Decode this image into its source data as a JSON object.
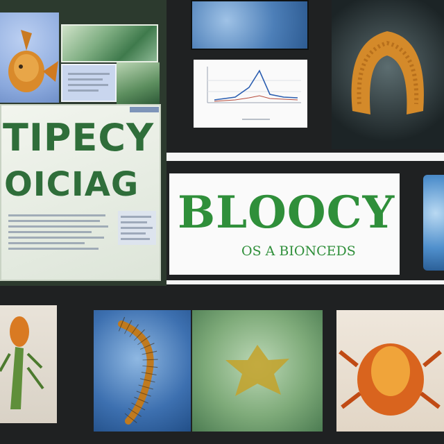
{
  "poster": {
    "line1": "TIPECY",
    "line2": "OICIAG"
  },
  "title_panel": {
    "title": "BLOOCY",
    "subtitle": "OS A BIONCEDS"
  },
  "colors": {
    "background": "#1f2122",
    "title_green": "#2f8f3a",
    "poster_green": "#2f6e3a",
    "chart_line": "#2a5db0"
  },
  "images": [
    {
      "name": "goldfish-illustration"
    },
    {
      "name": "blue-specimen"
    },
    {
      "name": "coiled-orange-specimen"
    },
    {
      "name": "orange-insect-specimen"
    },
    {
      "name": "centipede-specimen"
    },
    {
      "name": "green-cell-specimen"
    },
    {
      "name": "orange-crab-specimen"
    }
  ]
}
